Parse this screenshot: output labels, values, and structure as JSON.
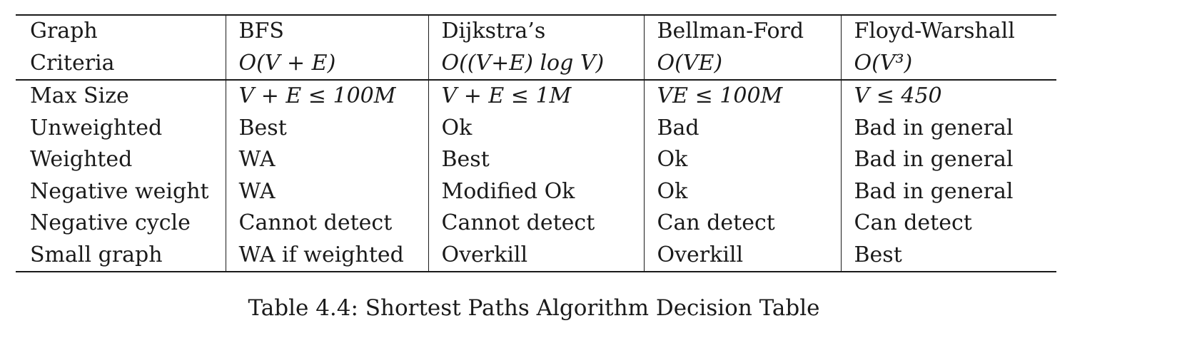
{
  "table": {
    "header_row_1": [
      "Graph",
      "BFS",
      "Dijkstra’s",
      "Bellman-Ford",
      "Floyd-Warshall"
    ],
    "header_row_2": [
      "Criteria",
      "O(V + E)",
      "O((V+E) log V)",
      "O(VE)",
      "O(V³)"
    ],
    "rows": [
      [
        "Max Size",
        "V + E ≤ 100M",
        "V + E ≤ 1M",
        "VE ≤ 100M",
        "V ≤ 450"
      ],
      [
        "Unweighted",
        "Best",
        "Ok",
        "Bad",
        "Bad in general"
      ],
      [
        "Weighted",
        "WA",
        "Best",
        "Ok",
        "Bad in general"
      ],
      [
        "Negative weight",
        "WA",
        "Modified Ok",
        "Ok",
        "Bad in general"
      ],
      [
        "Negative cycle",
        "Cannot detect",
        "Cannot detect",
        "Can detect",
        "Can detect"
      ],
      [
        "Small graph",
        "WA if weighted",
        "Overkill",
        "Overkill",
        "Best"
      ]
    ]
  },
  "caption": "Table 4.4: Shortest Paths Algorithm Decision Table"
}
